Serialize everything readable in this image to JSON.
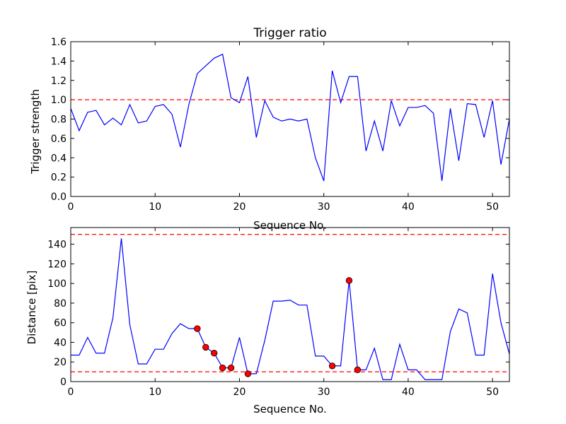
{
  "chart_data": [
    {
      "type": "line",
      "title": "Trigger ratio",
      "xlabel": "Sequence No.",
      "ylabel": "Trigger strength",
      "xlim": [
        0,
        52
      ],
      "ylim": [
        0,
        1.6
      ],
      "xticks": [
        0,
        10,
        20,
        30,
        40,
        50
      ],
      "xtick_labels": [
        "0",
        "10",
        "20",
        "30",
        "40",
        "50"
      ],
      "yticks": [
        0,
        0.2,
        0.4,
        0.6,
        0.8,
        1.0,
        1.2,
        1.4,
        1.6
      ],
      "ytick_labels": [
        "0.0",
        "0.2",
        "0.4",
        "0.6",
        "0.8",
        "1.0",
        "1.2",
        "1.4",
        "1.6"
      ],
      "line_color": "#0000ff",
      "threshold_color": "#ff0000",
      "thresholds": [
        1.0
      ],
      "x": [
        0,
        1,
        2,
        3,
        4,
        5,
        6,
        7,
        8,
        9,
        10,
        11,
        12,
        13,
        14,
        15,
        16,
        17,
        18,
        19,
        20,
        21,
        22,
        23,
        24,
        25,
        26,
        27,
        28,
        29,
        30,
        31,
        32,
        33,
        34,
        35,
        36,
        37,
        38,
        39,
        40,
        41,
        42,
        43,
        44,
        45,
        46,
        47,
        48,
        49,
        50,
        51,
        52
      ],
      "values": [
        0.91,
        0.68,
        0.87,
        0.89,
        0.74,
        0.81,
        0.74,
        0.95,
        0.76,
        0.78,
        0.93,
        0.95,
        0.85,
        0.51,
        0.95,
        1.27,
        1.35,
        1.43,
        1.47,
        1.02,
        0.97,
        1.24,
        0.61,
        0.99,
        0.82,
        0.78,
        0.8,
        0.78,
        0.8,
        0.4,
        0.16,
        1.3,
        0.97,
        1.24,
        1.24,
        0.47,
        0.78,
        0.47,
        0.99,
        0.73,
        0.92,
        0.92,
        0.94,
        0.86,
        0.16,
        0.91,
        0.37,
        0.96,
        0.95,
        0.61,
        0.99,
        0.33,
        0.8
      ]
    },
    {
      "type": "line",
      "title": "",
      "xlabel": "Sequence No.",
      "ylabel": "Distance [pix]",
      "xlim": [
        0,
        52
      ],
      "ylim": [
        0,
        157
      ],
      "xticks": [
        0,
        10,
        20,
        30,
        40,
        50
      ],
      "xtick_labels": [
        "0",
        "10",
        "20",
        "30",
        "40",
        "50"
      ],
      "yticks": [
        0,
        20,
        40,
        60,
        80,
        100,
        120,
        140
      ],
      "ytick_labels": [
        "0",
        "20",
        "40",
        "60",
        "80",
        "100",
        "120",
        "140"
      ],
      "line_color": "#0000ff",
      "threshold_color": "#ff0000",
      "marker_color": "#ff0000",
      "thresholds": [
        150,
        10
      ],
      "x": [
        0,
        1,
        2,
        3,
        4,
        5,
        6,
        7,
        8,
        9,
        10,
        11,
        12,
        13,
        14,
        15,
        16,
        17,
        18,
        19,
        20,
        21,
        22,
        23,
        24,
        25,
        26,
        27,
        28,
        29,
        30,
        31,
        32,
        33,
        34,
        35,
        36,
        37,
        38,
        39,
        40,
        41,
        42,
        43,
        44,
        45,
        46,
        47,
        48,
        49,
        50,
        51,
        52
      ],
      "values": [
        27,
        27,
        45,
        29,
        29,
        65,
        146,
        58,
        18,
        18,
        33,
        33,
        49,
        59,
        54,
        54,
        35,
        29,
        14,
        14,
        45,
        8,
        8,
        42,
        82,
        82,
        83,
        78,
        78,
        26,
        26,
        16,
        16,
        103,
        12,
        12,
        34,
        2,
        2,
        38,
        12,
        12,
        2,
        2,
        2,
        51,
        74,
        70,
        27,
        27,
        110,
        60,
        28
      ],
      "markers": [
        {
          "x": 15,
          "y": 54
        },
        {
          "x": 16,
          "y": 35
        },
        {
          "x": 17,
          "y": 29
        },
        {
          "x": 18,
          "y": 14
        },
        {
          "x": 19,
          "y": 14
        },
        {
          "x": 21,
          "y": 8
        },
        {
          "x": 31,
          "y": 16
        },
        {
          "x": 33,
          "y": 103
        },
        {
          "x": 34,
          "y": 12
        }
      ]
    }
  ]
}
